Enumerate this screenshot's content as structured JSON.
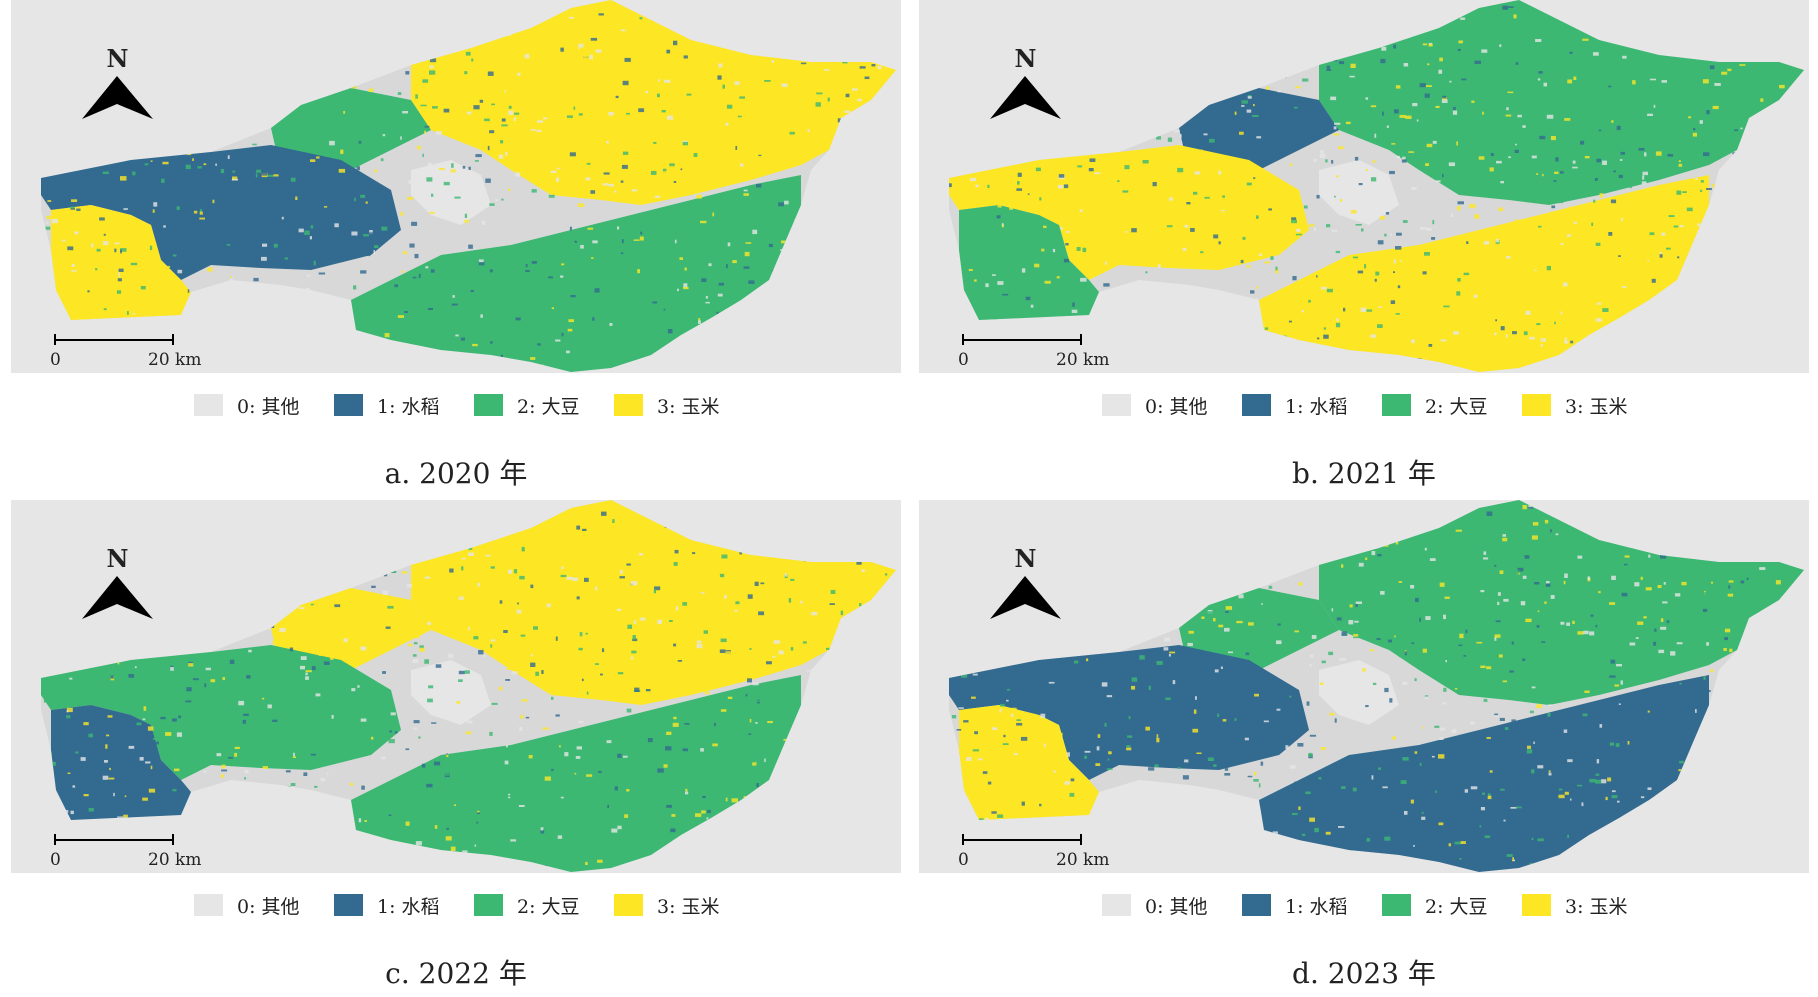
{
  "colors": {
    "background": "#e6e6e6",
    "other": "#e6e6e6",
    "rice": "#336a8f",
    "soybean": "#3cb873",
    "corn": "#fde725"
  },
  "legend": [
    {
      "label": "0: 其他",
      "color": "#e6e6e6"
    },
    {
      "label": "1: 水稻",
      "color": "#336a8f"
    },
    {
      "label": "2: 大豆",
      "color": "#3cb873"
    },
    {
      "label": "3: 玉米",
      "color": "#fde725"
    }
  ],
  "north_arrow": {
    "label": "N",
    "icon": "north-arrow-icon"
  },
  "scale_bar": {
    "start_label": "0",
    "end_label": "20 km"
  },
  "panels": [
    {
      "caption": "a. 2020 年",
      "regions": {
        "west": "rice",
        "southwest": "corn",
        "north_belt": "soybean",
        "northeast": "corn",
        "south": "soybean",
        "center": "other"
      }
    },
    {
      "caption": "b. 2021 年",
      "regions": {
        "west": "corn",
        "southwest": "soybean",
        "north_belt": "rice",
        "northeast": "soybean",
        "south": "corn",
        "center": "other"
      }
    },
    {
      "caption": "c. 2022 年",
      "regions": {
        "west": "soybean",
        "southwest": "rice",
        "north_belt": "corn",
        "northeast": "corn",
        "south": "soybean",
        "center": "other"
      }
    },
    {
      "caption": "d. 2023 年",
      "regions": {
        "west": "rice",
        "southwest": "corn",
        "north_belt": "soybean",
        "northeast": "soybean",
        "south": "rice",
        "center": "other"
      }
    }
  ]
}
